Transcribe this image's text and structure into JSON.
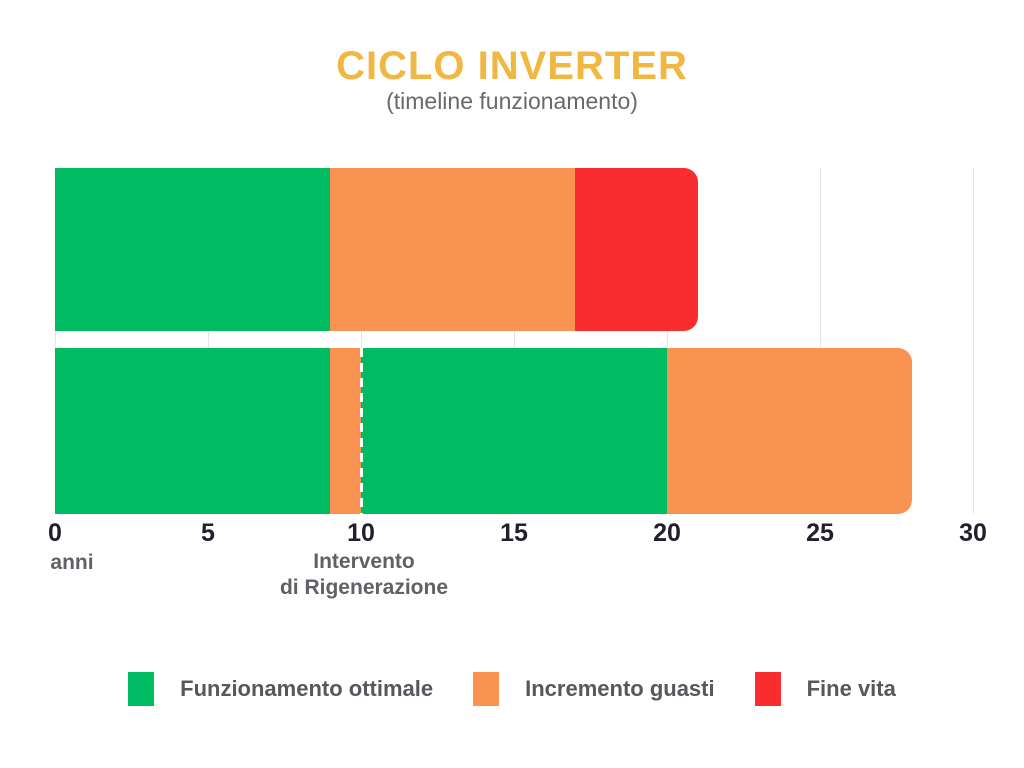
{
  "chart_data": {
    "type": "bar",
    "variant": "horizontal-stacked-timeline",
    "title": "CICLO INVERTER",
    "subtitle": "(timeline funzionamento)",
    "xlim": [
      0,
      30
    ],
    "x_ticks": [
      0,
      5,
      10,
      15,
      20,
      25,
      30
    ],
    "x_unit_label": "anni",
    "grid": true,
    "palette": {
      "green": "#00BB62",
      "orange": "#F99351",
      "red": "#F92D30",
      "title_gold": "#F0B843",
      "axis_text": "#20202F",
      "gray_text": "#5E6165",
      "gridline": "#E4E4E7"
    },
    "bars": [
      {
        "id": "bar-no-regeneration",
        "segments": [
          {
            "legend": "Funzionamento ottimale",
            "start": 0,
            "end": 9,
            "color_key": "green"
          },
          {
            "legend": "Incremento guasti",
            "start": 9,
            "end": 17,
            "color_key": "orange"
          },
          {
            "legend": "Fine vita",
            "start": 17,
            "end": 21,
            "color_key": "red"
          }
        ]
      },
      {
        "id": "bar-with-regeneration",
        "segments": [
          {
            "legend": "Funzionamento ottimale",
            "start": 0,
            "end": 9,
            "color_key": "green"
          },
          {
            "legend": "Incremento guasti",
            "start": 9,
            "end": 10,
            "color_key": "orange"
          },
          {
            "legend": "Funzionamento ottimale",
            "start": 10,
            "end": 20,
            "color_key": "green"
          },
          {
            "legend": "Incremento guasti",
            "start": 20,
            "end": 28,
            "color_key": "orange"
          }
        ],
        "marker": {
          "x": 10,
          "style": "dashed-white"
        }
      }
    ],
    "annotation": {
      "x": 10,
      "lines": [
        "Intervento",
        "di Rigenerazione"
      ]
    },
    "legend": [
      {
        "label": "Funzionamento ottimale",
        "color_key": "green"
      },
      {
        "label": "Incremento guasti",
        "color_key": "orange"
      },
      {
        "label": "Fine vita",
        "color_key": "red"
      }
    ],
    "legend_position": "bottom"
  }
}
